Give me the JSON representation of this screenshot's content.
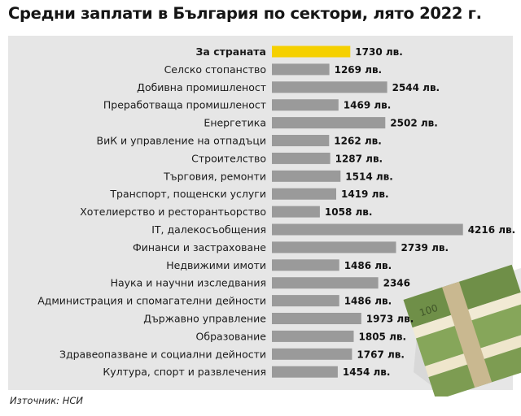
{
  "title": "Средни заплати в България по сектори, лято 2022 г.",
  "source": "Източник: НСИ",
  "colors": {
    "highlight": "#f5d000",
    "bar": "#9a9a9a",
    "panel": "#e6e6e6"
  },
  "chart_data": {
    "type": "bar",
    "orientation": "horizontal",
    "title": "Средни заплати в България по сектори, лято 2022 г.",
    "value_unit": "лв.",
    "categories": [
      "За страната",
      "Селско стопанство",
      "Добивна промишленост",
      "Преработваща промишленост",
      "Енергетика",
      "ВиК и управление на отпадъци",
      "Строителство",
      "Търговия, ремонти",
      "Транспорт, пощенски услуги",
      "Хотелиерство и ресторантьорство",
      "IT, далекосъобщения",
      "Финанси и застраховане",
      "Недвижими имоти",
      "Наука и научни изследвания",
      "Администрация и спомагателни дейности",
      "Държавно управление",
      "Образование",
      "Здравеопазване и социални дейности",
      "Култура, спорт и развлечения"
    ],
    "values": [
      1730,
      1269,
      2544,
      1469,
      2502,
      1262,
      1287,
      1514,
      1419,
      1058,
      4216,
      2739,
      1486,
      2346,
      1486,
      1973,
      1805,
      1767,
      1454
    ],
    "value_labels": [
      "1730 лв.",
      "1269 лв.",
      "2544 лв.",
      "1469 лв.",
      "2502 лв.",
      "1262 лв.",
      "1287 лв.",
      "1514 лв.",
      "1419 лв.",
      "1058 лв.",
      "4216 лв.",
      "2739 лв.",
      "1486 лв.",
      "2346",
      "1486 лв.",
      "1973 лв.",
      "1805 лв.",
      "1767 лв.",
      "1454 лв."
    ],
    "highlight_index": 0,
    "legend": "none",
    "grid": false
  }
}
